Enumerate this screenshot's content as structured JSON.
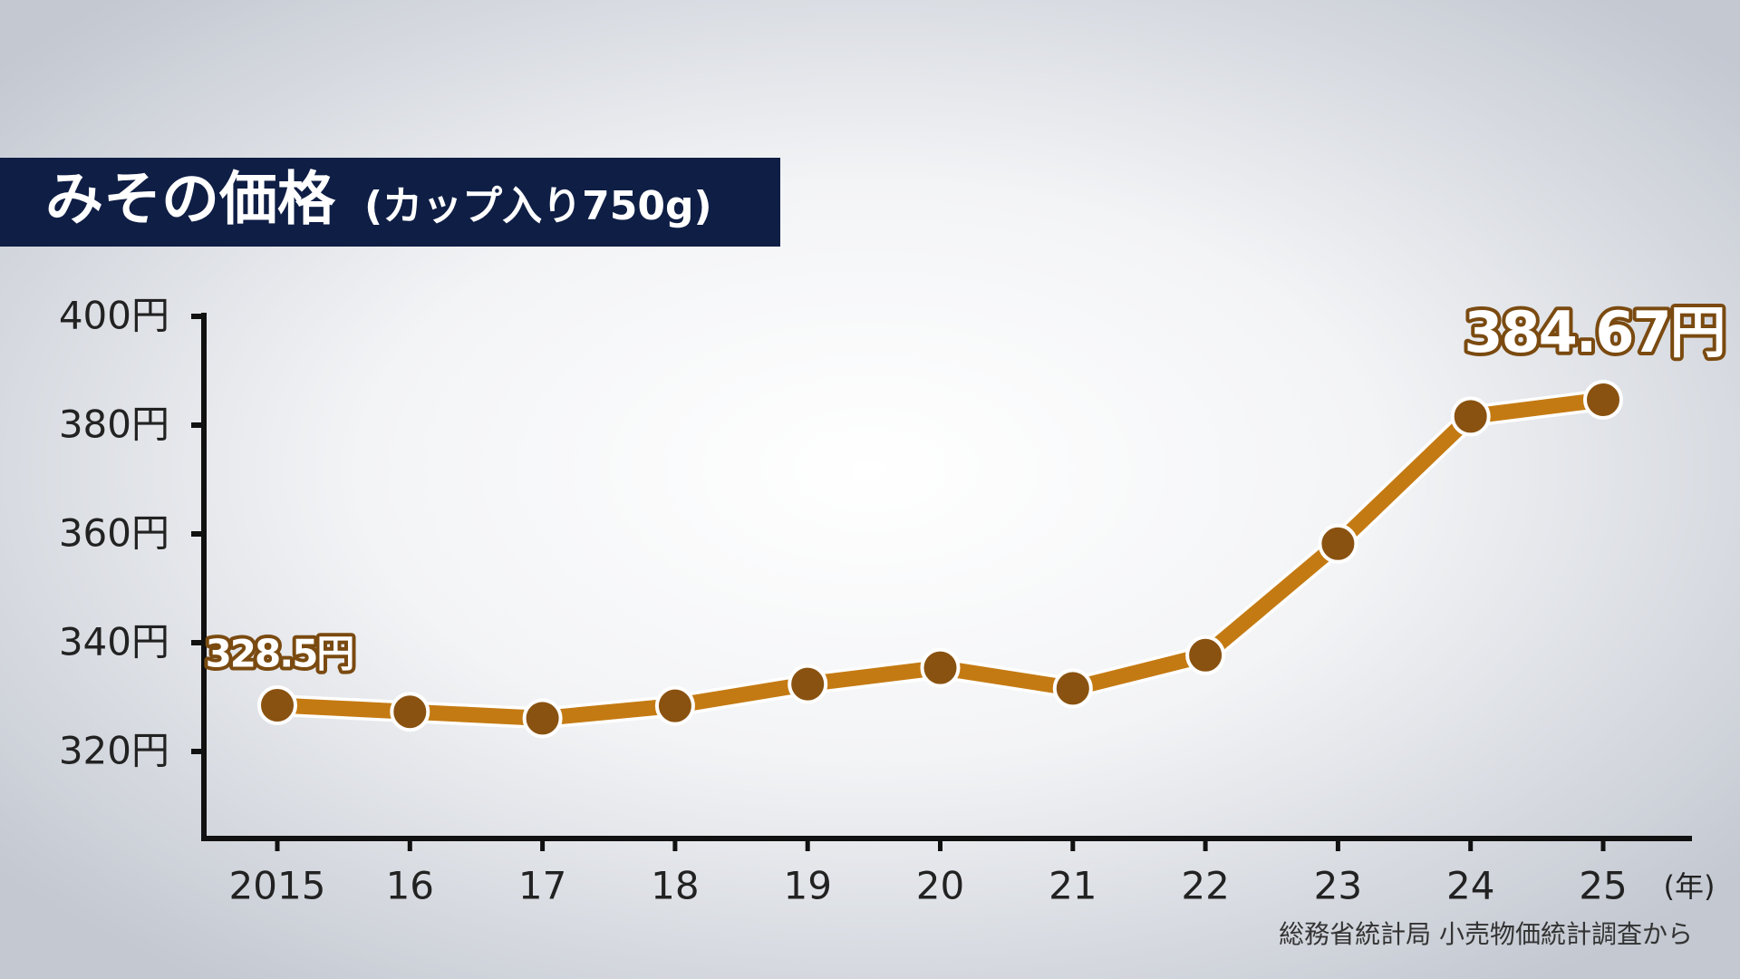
{
  "chart_data": {
    "type": "line",
    "title": "みその価格",
    "subtitle": "(カップ入り750g)",
    "categories": [
      "2015",
      "16",
      "17",
      "18",
      "19",
      "20",
      "21",
      "22",
      "23",
      "24",
      "25"
    ],
    "x_unit": "(年)",
    "series": [
      {
        "name": "みその価格",
        "color": "#c47a12",
        "values": [
          328.5,
          327.3,
          326.1,
          328.4,
          332.4,
          335.4,
          331.6,
          337.7,
          358.2,
          381.6,
          384.67
        ],
        "value_labels": [
          "328.5円",
          null,
          null,
          null,
          null,
          null,
          null,
          null,
          null,
          null,
          "384.67円"
        ]
      }
    ],
    "marker_color": "#8a5210",
    "ylim": [
      304,
      400
    ],
    "yticks": [
      {
        "value": 320,
        "label": "320円"
      },
      {
        "value": 340,
        "label": "340円"
      },
      {
        "value": 360,
        "label": "360円"
      },
      {
        "value": 380,
        "label": "380円"
      },
      {
        "value": 400,
        "label": "400円"
      }
    ],
    "source": "総務省統計局 小売物価統計調査から"
  }
}
